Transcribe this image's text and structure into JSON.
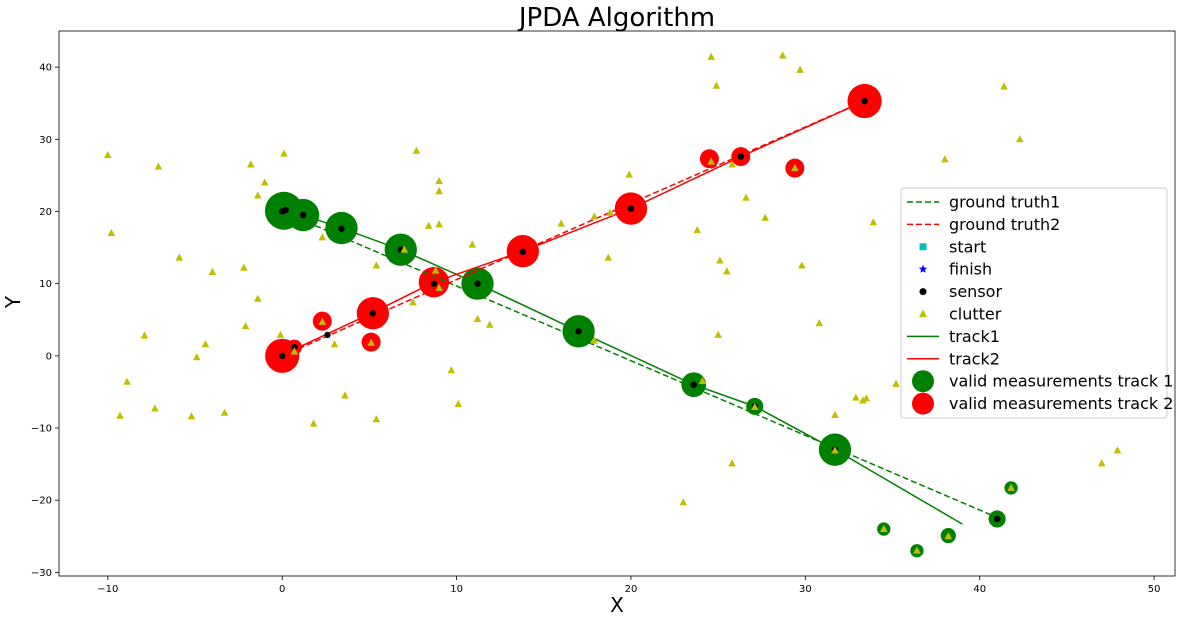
{
  "chart_data": {
    "type": "scatter",
    "title": "JPDA Algorithm",
    "xlabel": "X",
    "ylabel": "Y",
    "xlim": [
      -12.8,
      51.2
    ],
    "ylim": [
      -30.5,
      45
    ],
    "xticks": [
      -10,
      0,
      10,
      20,
      30,
      40,
      50
    ],
    "yticks": [
      -30,
      -20,
      -10,
      0,
      10,
      20,
      30,
      40
    ],
    "grid": false,
    "legend_position": "center-right",
    "colors": {
      "ground_truth1": "#008000",
      "ground_truth2": "#ff0000",
      "start": "#00bfbf",
      "finish": "#0000ff",
      "sensor": "#000000",
      "clutter": "#bfbf00",
      "track1": "#008000",
      "track2": "#ff0000",
      "valid1": "#008000",
      "valid2": "#ff0000"
    },
    "legend": [
      {
        "key": "ground_truth1",
        "label": "ground truth1",
        "style": "dashed-line"
      },
      {
        "key": "ground_truth2",
        "label": "ground truth2",
        "style": "dashed-line"
      },
      {
        "key": "start",
        "label": "start",
        "style": "square"
      },
      {
        "key": "finish",
        "label": "finish",
        "style": "star"
      },
      {
        "key": "sensor",
        "label": "sensor",
        "style": "dot"
      },
      {
        "key": "clutter",
        "label": "clutter",
        "style": "triangle"
      },
      {
        "key": "track1",
        "label": "track1",
        "style": "solid-line"
      },
      {
        "key": "track2",
        "label": "track2",
        "style": "solid-line"
      },
      {
        "key": "valid1",
        "label": "valid measurements track 1",
        "style": "big-circle"
      },
      {
        "key": "valid2",
        "label": "valid measurements track 2",
        "style": "big-circle"
      }
    ],
    "series": [
      {
        "name": "ground truth1",
        "kind": "line-dashed",
        "x": [
          0,
          41.1
        ],
        "y": [
          20,
          -22.5
        ]
      },
      {
        "name": "ground truth2",
        "kind": "line-dashed",
        "x": [
          0,
          33.4
        ],
        "y": [
          0,
          35.3
        ]
      },
      {
        "name": "track1",
        "kind": "line",
        "x": [
          0,
          1.2,
          3.4,
          6.8,
          11.2,
          17,
          23.6,
          27.1,
          31.7,
          39
        ],
        "y": [
          20,
          19.5,
          17.7,
          14.7,
          10,
          3.4,
          -4,
          -7,
          -13,
          -23.3
        ]
      },
      {
        "name": "track2",
        "kind": "line",
        "x": [
          0,
          0.7,
          5.2,
          8.7,
          13.8,
          20,
          26.3,
          33.4
        ],
        "y": [
          0,
          0.9,
          6,
          10.2,
          14.5,
          20.4,
          27.6,
          35.3
        ]
      },
      {
        "name": "valid measurements track 1",
        "kind": "circles",
        "points": [
          {
            "x": 0.1,
            "y": 20.1,
            "size": 2.0
          },
          {
            "x": 1.2,
            "y": 19.5,
            "size": 1.7
          },
          {
            "x": 3.4,
            "y": 17.7,
            "size": 1.7
          },
          {
            "x": 6.8,
            "y": 14.7,
            "size": 1.7
          },
          {
            "x": 11.2,
            "y": 10.0,
            "size": 1.7
          },
          {
            "x": 17.0,
            "y": 3.4,
            "size": 1.7
          },
          {
            "x": 23.6,
            "y": -4.0,
            "size": 1.3
          },
          {
            "x": 27.1,
            "y": -7.0,
            "size": 0.9
          },
          {
            "x": 31.7,
            "y": -13.0,
            "size": 1.7
          },
          {
            "x": 41.8,
            "y": -18.3,
            "size": 0.7
          },
          {
            "x": 34.5,
            "y": -24.0,
            "size": 0.7
          },
          {
            "x": 38.2,
            "y": -24.9,
            "size": 0.8
          },
          {
            "x": 36.4,
            "y": -27.0,
            "size": 0.7
          },
          {
            "x": 41.0,
            "y": -22.6,
            "size": 0.9
          }
        ]
      },
      {
        "name": "valid measurements track 2",
        "kind": "circles",
        "points": [
          {
            "x": 0.0,
            "y": 0.0,
            "size": 1.8
          },
          {
            "x": 0.7,
            "y": 1.2,
            "size": 0.8
          },
          {
            "x": 2.3,
            "y": 4.8,
            "size": 1.0
          },
          {
            "x": 5.1,
            "y": 1.9,
            "size": 1.0
          },
          {
            "x": 5.2,
            "y": 5.9,
            "size": 1.7
          },
          {
            "x": 8.7,
            "y": 10.2,
            "size": 1.6
          },
          {
            "x": 13.8,
            "y": 14.5,
            "size": 1.7
          },
          {
            "x": 20.0,
            "y": 20.4,
            "size": 1.7
          },
          {
            "x": 24.5,
            "y": 27.3,
            "size": 1.0
          },
          {
            "x": 26.3,
            "y": 27.6,
            "size": 1.0
          },
          {
            "x": 29.4,
            "y": 26.0,
            "size": 1.0
          },
          {
            "x": 33.4,
            "y": 35.3,
            "size": 1.8
          }
        ]
      },
      {
        "name": "sensor",
        "kind": "dots",
        "points": [
          {
            "x": 0,
            "y": 20
          },
          {
            "x": 0.2,
            "y": 20.2
          },
          {
            "x": 1.2,
            "y": 19.5
          },
          {
            "x": 3.4,
            "y": 17.6
          },
          {
            "x": 6.8,
            "y": 14.7
          },
          {
            "x": 11.2,
            "y": 10.0
          },
          {
            "x": 17.0,
            "y": 3.4
          },
          {
            "x": 23.6,
            "y": -4.0
          },
          {
            "x": 27.1,
            "y": -7.0
          },
          {
            "x": 31.7,
            "y": -13.0
          },
          {
            "x": 41.0,
            "y": -22.6
          },
          {
            "x": 0,
            "y": 0
          },
          {
            "x": 0.7,
            "y": 1.2
          },
          {
            "x": 2.6,
            "y": 2.9
          },
          {
            "x": 5.2,
            "y": 5.9
          },
          {
            "x": 8.7,
            "y": 10.0
          },
          {
            "x": 13.8,
            "y": 14.4
          },
          {
            "x": 20.0,
            "y": 20.4
          },
          {
            "x": 26.3,
            "y": 27.6
          },
          {
            "x": 33.4,
            "y": 35.3
          }
        ]
      },
      {
        "name": "clutter",
        "kind": "triangles",
        "points": [
          {
            "x": -10,
            "y": 27.8
          },
          {
            "x": -7.1,
            "y": 26.2
          },
          {
            "x": -1.8,
            "y": 26.5
          },
          {
            "x": 0.1,
            "y": 28.0
          },
          {
            "x": 7.7,
            "y": 28.4
          },
          {
            "x": 9.0,
            "y": 24.2
          },
          {
            "x": 9.0,
            "y": 22.8
          },
          {
            "x": -1.0,
            "y": 24.0
          },
          {
            "x": -1.4,
            "y": 22.2
          },
          {
            "x": -9.8,
            "y": 17.0
          },
          {
            "x": -5.9,
            "y": 13.6
          },
          {
            "x": -4.0,
            "y": 11.6
          },
          {
            "x": -2.2,
            "y": 12.2
          },
          {
            "x": -1.4,
            "y": 7.9
          },
          {
            "x": -2.1,
            "y": 4.1
          },
          {
            "x": -7.9,
            "y": 2.8
          },
          {
            "x": -4.4,
            "y": 1.6
          },
          {
            "x": -4.9,
            "y": -0.2
          },
          {
            "x": -8.9,
            "y": -3.6
          },
          {
            "x": -9.3,
            "y": -8.3
          },
          {
            "x": -7.3,
            "y": -7.3
          },
          {
            "x": -5.2,
            "y": -8.4
          },
          {
            "x": -3.3,
            "y": -7.9
          },
          {
            "x": -0.1,
            "y": 2.9
          },
          {
            "x": 0.7,
            "y": 0.6
          },
          {
            "x": 2.3,
            "y": 4.7
          },
          {
            "x": 2.3,
            "y": 16.4
          },
          {
            "x": 3.0,
            "y": 1.6
          },
          {
            "x": 3.6,
            "y": -5.5
          },
          {
            "x": 1.8,
            "y": -9.4
          },
          {
            "x": 5.4,
            "y": 12.5
          },
          {
            "x": 5.4,
            "y": -8.8
          },
          {
            "x": 5.1,
            "y": 1.8
          },
          {
            "x": 7.0,
            "y": 14.7
          },
          {
            "x": 7.5,
            "y": 7.4
          },
          {
            "x": 8.4,
            "y": 18.0
          },
          {
            "x": 8.8,
            "y": 11.8
          },
          {
            "x": 9.0,
            "y": 9.4
          },
          {
            "x": 9.0,
            "y": 18.2
          },
          {
            "x": 9.7,
            "y": -2.0
          },
          {
            "x": 10.1,
            "y": -6.7
          },
          {
            "x": 10.9,
            "y": 15.4
          },
          {
            "x": 11.2,
            "y": 5.1
          },
          {
            "x": 11.9,
            "y": 4.3
          },
          {
            "x": 16.0,
            "y": 18.3
          },
          {
            "x": 17.9,
            "y": 19.3
          },
          {
            "x": 17.9,
            "y": 2.1
          },
          {
            "x": 18.7,
            "y": 13.6
          },
          {
            "x": 18.8,
            "y": 19.8
          },
          {
            "x": 19.9,
            "y": 25.1
          },
          {
            "x": 23.0,
            "y": -20.3
          },
          {
            "x": 23.8,
            "y": 17.4
          },
          {
            "x": 24.1,
            "y": -3.5
          },
          {
            "x": 24.6,
            "y": 26.9
          },
          {
            "x": 24.6,
            "y": 41.4
          },
          {
            "x": 24.9,
            "y": 37.4
          },
          {
            "x": 25.1,
            "y": 13.2
          },
          {
            "x": 25.0,
            "y": 2.9
          },
          {
            "x": 25.5,
            "y": 11.7
          },
          {
            "x": 25.8,
            "y": 26.5
          },
          {
            "x": 25.8,
            "y": -14.9
          },
          {
            "x": 26.6,
            "y": 21.9
          },
          {
            "x": 27.1,
            "y": -7.1
          },
          {
            "x": 27.7,
            "y": 19.1
          },
          {
            "x": 28.7,
            "y": 41.6
          },
          {
            "x": 29.4,
            "y": 26.0
          },
          {
            "x": 29.7,
            "y": 39.6
          },
          {
            "x": 29.8,
            "y": 12.5
          },
          {
            "x": 30.8,
            "y": 4.5
          },
          {
            "x": 31.7,
            "y": -8.2
          },
          {
            "x": 31.7,
            "y": -13.1
          },
          {
            "x": 32.9,
            "y": -5.8
          },
          {
            "x": 33.3,
            "y": -6.2
          },
          {
            "x": 33.5,
            "y": -5.9
          },
          {
            "x": 33.9,
            "y": 18.5
          },
          {
            "x": 35.2,
            "y": -3.9
          },
          {
            "x": 34.5,
            "y": -24.0
          },
          {
            "x": 36.4,
            "y": -27.0
          },
          {
            "x": 38.0,
            "y": 27.2
          },
          {
            "x": 38.2,
            "y": -25.0
          },
          {
            "x": 41.4,
            "y": 37.3
          },
          {
            "x": 42.3,
            "y": 30.0
          },
          {
            "x": 41.8,
            "y": -18.3
          },
          {
            "x": 47.0,
            "y": -14.9
          },
          {
            "x": 47.9,
            "y": -13.1
          }
        ]
      }
    ]
  }
}
